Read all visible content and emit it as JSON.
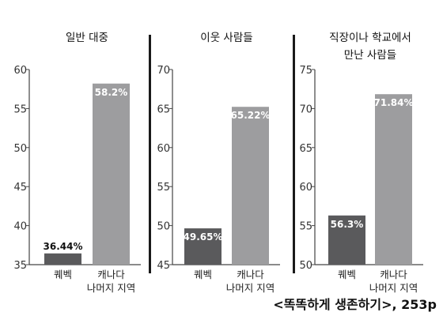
{
  "source_note": "<똑똑하게 생존하기>, 253p",
  "colors": {
    "quebec": "#5a5a5c",
    "canada": "#9d9d9f",
    "axis": "#444444",
    "divider": "#1a1a1a"
  },
  "chart_data": [
    {
      "type": "bar",
      "title": [
        "일반 대중"
      ],
      "categories": [
        [
          "퀘벡"
        ],
        [
          "캐나다",
          "나머지 지역"
        ]
      ],
      "values": [
        36.44,
        58.2
      ],
      "data_labels": [
        "36.44%",
        "58.2%"
      ],
      "ylim": [
        35,
        60
      ],
      "yticks": [
        35,
        40,
        45,
        50,
        55,
        60
      ]
    },
    {
      "type": "bar",
      "title": [
        "이웃 사람들"
      ],
      "categories": [
        [
          "퀘벡"
        ],
        [
          "캐나다",
          "나머지 지역"
        ]
      ],
      "values": [
        49.65,
        65.22
      ],
      "data_labels": [
        "49.65%",
        "65.22%"
      ],
      "ylim": [
        45,
        70
      ],
      "yticks": [
        45,
        50,
        55,
        60,
        65,
        70
      ]
    },
    {
      "type": "bar",
      "title": [
        "직장이나 학교에서",
        "만난 사람들"
      ],
      "categories": [
        [
          "퀘벡"
        ],
        [
          "캐나다",
          "나머지 지역"
        ]
      ],
      "values": [
        56.3,
        71.84
      ],
      "data_labels": [
        "56.3%",
        "71.84%"
      ],
      "ylim": [
        50,
        75
      ],
      "yticks": [
        50,
        55,
        60,
        65,
        70,
        75
      ]
    }
  ]
}
